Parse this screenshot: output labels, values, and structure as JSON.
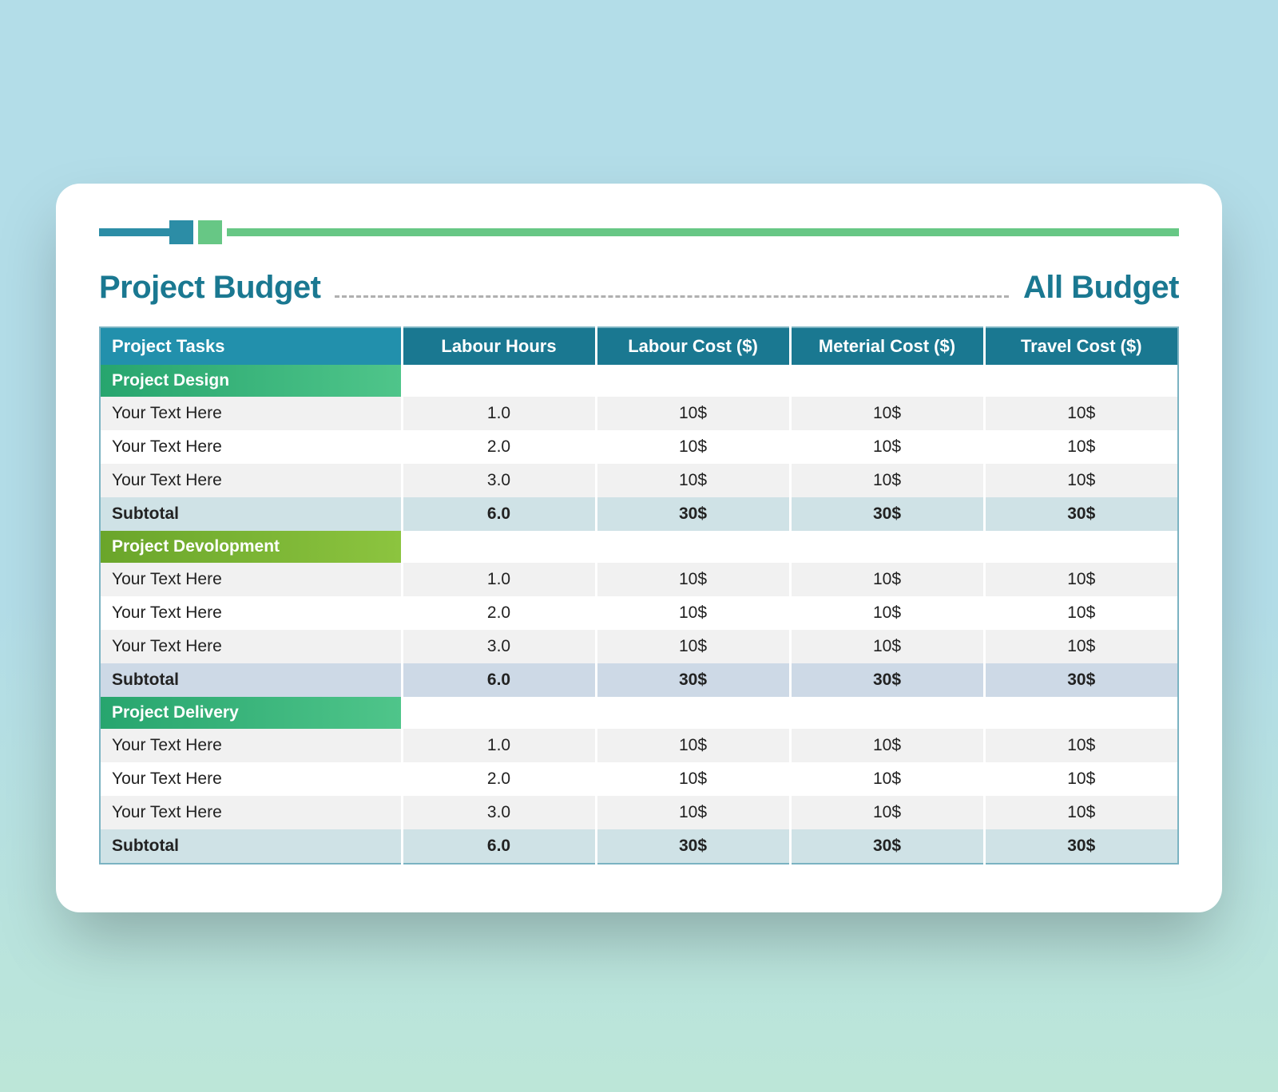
{
  "colors": {
    "header_bg": "#1a7891",
    "header_first_bg": "#2290ac",
    "section1_bg_from": "#27a56e",
    "section1_bg_to": "#4fc58a",
    "section2_bg_from": "#6aa52a",
    "section2_bg_to": "#8cc43f",
    "section3_bg_from": "#27a56e",
    "section3_bg_to": "#4fc58a",
    "subtotal1_bg": "#cfe2e6",
    "subtotal2_bg": "#cdd9e6",
    "subtotal3_bg": "#cfe2e6",
    "row_bg": "#f1f1f1",
    "row_alt_bg": "#ffffff",
    "border": "#7bb3c2"
  },
  "layout": {
    "columns": [
      "tasks",
      "hours",
      "labour",
      "material",
      "travel"
    ],
    "col_widths_pct": [
      28,
      18,
      18,
      18,
      18
    ],
    "header_font_size": 22,
    "body_font_size": 21
  },
  "title_left": "Project Budget",
  "title_right": "All Budget",
  "headers": {
    "tasks": "Project Tasks",
    "hours": "Labour Hours",
    "labour": "Labour Cost ($)",
    "material": "Meterial Cost ($)",
    "travel": "Travel Cost ($)"
  },
  "sections": [
    {
      "name": "Project Design",
      "rows": [
        {
          "task": "Your Text Here",
          "hours": "1.0",
          "labour": "10$",
          "material": "10$",
          "travel": "10$"
        },
        {
          "task": "Your Text Here",
          "hours": "2.0",
          "labour": "10$",
          "material": "10$",
          "travel": "10$"
        },
        {
          "task": "Your Text Here",
          "hours": "3.0",
          "labour": "10$",
          "material": "10$",
          "travel": "10$"
        }
      ],
      "subtotal": {
        "label": "Subtotal",
        "hours": "6.0",
        "labour": "30$",
        "material": "30$",
        "travel": "30$"
      }
    },
    {
      "name": "Project Devolopment",
      "rows": [
        {
          "task": "Your Text Here",
          "hours": "1.0",
          "labour": "10$",
          "material": "10$",
          "travel": "10$"
        },
        {
          "task": "Your Text Here",
          "hours": "2.0",
          "labour": "10$",
          "material": "10$",
          "travel": "10$"
        },
        {
          "task": "Your Text Here",
          "hours": "3.0",
          "labour": "10$",
          "material": "10$",
          "travel": "10$"
        }
      ],
      "subtotal": {
        "label": "Subtotal",
        "hours": "6.0",
        "labour": "30$",
        "material": "30$",
        "travel": "30$"
      }
    },
    {
      "name": "Project Delivery",
      "rows": [
        {
          "task": "Your Text Here",
          "hours": "1.0",
          "labour": "10$",
          "material": "10$",
          "travel": "10$"
        },
        {
          "task": "Your Text Here",
          "hours": "2.0",
          "labour": "10$",
          "material": "10$",
          "travel": "10$"
        },
        {
          "task": "Your Text Here",
          "hours": "3.0",
          "labour": "10$",
          "material": "10$",
          "travel": "10$"
        }
      ],
      "subtotal": {
        "label": "Subtotal",
        "hours": "6.0",
        "labour": "30$",
        "material": "30$",
        "travel": "30$"
      }
    }
  ]
}
